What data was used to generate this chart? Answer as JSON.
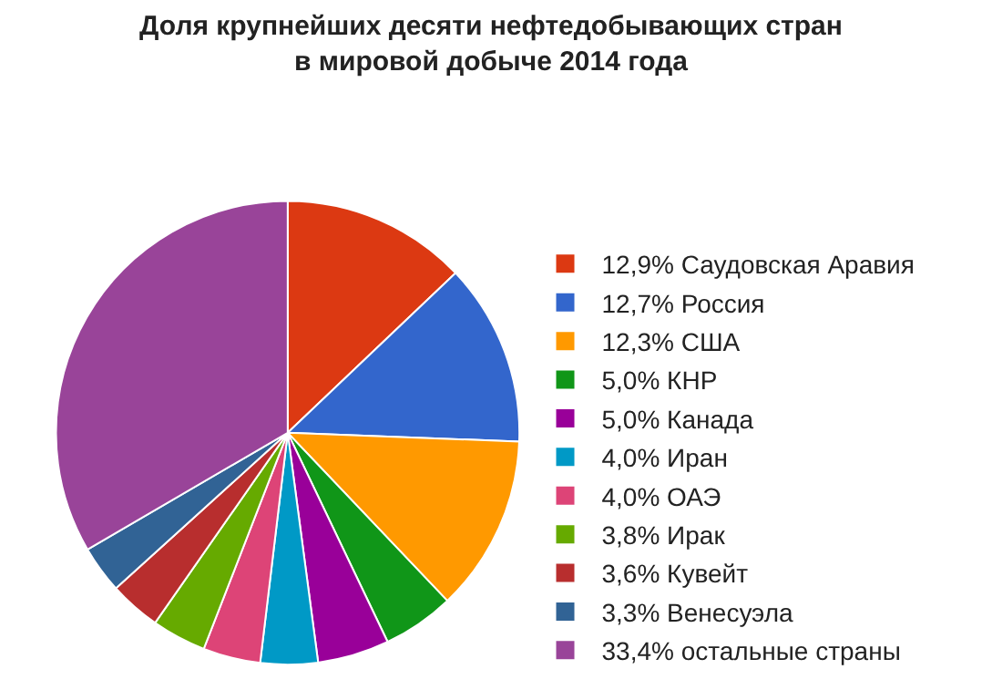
{
  "chart_data": {
    "type": "pie",
    "title": "Доля крупнейших десяти нефтедобывающих стран\nв мировой добыче 2014 года",
    "categories": [
      "12,9% Саудовская Аравия",
      "12,7% Россия",
      "12,3% США",
      "5,0% КНР",
      "5,0% Канада",
      "4,0% Иран",
      "4,0% ОАЭ",
      "3,8% Ирак",
      "3,6% Кувейт",
      "3,3% Венесуэла",
      "33,4% остальные страны"
    ],
    "values": [
      12.9,
      12.7,
      12.3,
      5.0,
      5.0,
      4.0,
      4.0,
      3.8,
      3.6,
      3.3,
      33.4
    ],
    "colors": [
      "#dc3912",
      "#3366cc",
      "#ff9900",
      "#109618",
      "#990099",
      "#0099c6",
      "#dd4477",
      "#66aa00",
      "#b82e2e",
      "#316395",
      "#994499"
    ],
    "legend": "right"
  }
}
